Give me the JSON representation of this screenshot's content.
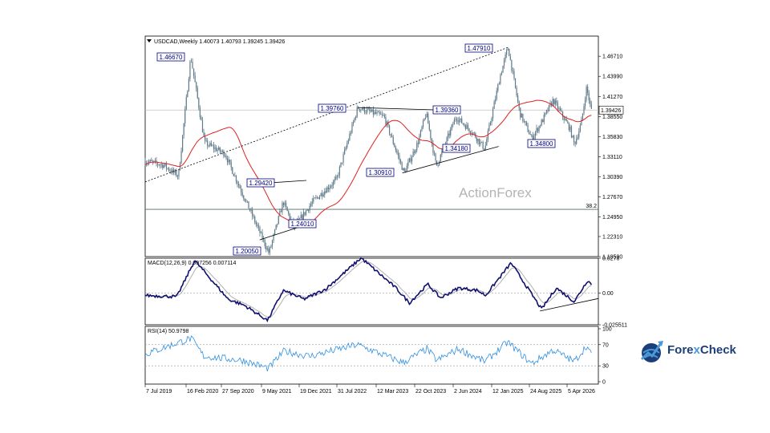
{
  "chart_data": {
    "type": "candlestick",
    "symbol_header": "USDCAD,Weekly  1.40073 1.40793 1.39245 1.39426",
    "watermark": "ActionForex",
    "x_tick_labels": [
      "7 Jul 2019",
      "16 Feb 2020",
      "27 Sep 2020",
      "9 May 2021",
      "19 Dec 2021",
      "31 Jul 2022",
      "12 Mar 2023",
      "22 Oct 2023",
      "2 Jun 2024",
      "12 Jan 2025",
      "24 Aug 2025",
      "5 Apr 2026"
    ],
    "price_panel": {
      "y_tick_labels": [
        "1.46710",
        "1.43990",
        "1.41270",
        "1.38550",
        "1.35830",
        "1.33110",
        "1.30390",
        "1.27670",
        "1.24950",
        "1.22310",
        "1.19590"
      ],
      "ylim": [
        1.1959,
        1.4944
      ],
      "current_price": "1.39426",
      "fib_level_label": "38.2",
      "fib_level_value": 1.2599,
      "annotations": [
        "1.46670",
        "1.29420",
        "1.20050",
        "1.24010",
        "1.39760",
        "1.39360",
        "1.30910",
        "1.34180",
        "1.47910",
        "1.34800"
      ],
      "anchors": [
        {
          "date": "2019-07-07",
          "close": 1.325
        },
        {
          "date": "2019-10-15",
          "close": 1.32
        },
        {
          "date": "2020-01-10",
          "close": 1.305
        },
        {
          "date": "2020-03-19",
          "close": 1.4667
        },
        {
          "date": "2020-06-05",
          "close": 1.35
        },
        {
          "date": "2020-09-27",
          "close": 1.335
        },
        {
          "date": "2021-01-15",
          "close": 1.275
        },
        {
          "date": "2021-06-01",
          "close": 1.2005
        },
        {
          "date": "2021-08-20",
          "close": 1.27
        },
        {
          "date": "2021-10-20",
          "close": 1.235
        },
        {
          "date": "2022-02-01",
          "close": 1.27
        },
        {
          "date": "2022-06-15",
          "close": 1.3
        },
        {
          "date": "2022-10-13",
          "close": 1.3976
        },
        {
          "date": "2023-03-10",
          "close": 1.385
        },
        {
          "date": "2023-06-30",
          "close": 1.3091
        },
        {
          "date": "2023-09-15",
          "close": 1.35
        },
        {
          "date": "2023-11-01",
          "close": 1.39
        },
        {
          "date": "2023-12-28",
          "close": 1.3178
        },
        {
          "date": "2024-04-16",
          "close": 1.385
        },
        {
          "date": "2024-07-15",
          "close": 1.365
        },
        {
          "date": "2024-09-25",
          "close": 1.3418
        },
        {
          "date": "2024-12-20",
          "close": 1.44
        },
        {
          "date": "2025-02-03",
          "close": 1.4791
        },
        {
          "date": "2025-04-10",
          "close": 1.39
        },
        {
          "date": "2025-06-16",
          "close": 1.356
        },
        {
          "date": "2025-08-15",
          "close": 1.38
        },
        {
          "date": "2025-10-14",
          "close": 1.408
        },
        {
          "date": "2026-01-15",
          "close": 1.37
        },
        {
          "date": "2026-02-10",
          "close": 1.348
        },
        {
          "date": "2026-03-20",
          "close": 1.375
        },
        {
          "date": "2026-04-20",
          "close": 1.425
        },
        {
          "date": "2026-05-15",
          "close": 1.3943
        }
      ]
    },
    "macd_panel": {
      "title": "MACD(12,26,9) 0.007256 0.007114",
      "y_tick_labels": [
        "0.0278",
        "0.00",
        "-0.025511"
      ],
      "ylim": [
        -0.0255,
        0.0278
      ],
      "anchors": [
        {
          "date": "2019-07-07",
          "value": -0.002
        },
        {
          "date": "2020-01-01",
          "value": -0.003
        },
        {
          "date": "2020-04-10",
          "value": 0.026
        },
        {
          "date": "2020-10-15",
          "value": -0.005
        },
        {
          "date": "2021-01-15",
          "value": -0.01
        },
        {
          "date": "2021-05-25",
          "value": -0.022
        },
        {
          "date": "2021-08-20",
          "value": 0.002
        },
        {
          "date": "2021-12-15",
          "value": -0.005
        },
        {
          "date": "2022-04-15",
          "value": 0.003
        },
        {
          "date": "2022-11-01",
          "value": 0.028
        },
        {
          "date": "2023-05-15",
          "value": 0.004
        },
        {
          "date": "2023-07-30",
          "value": -0.008
        },
        {
          "date": "2023-11-10",
          "value": 0.007
        },
        {
          "date": "2024-01-20",
          "value": -0.004
        },
        {
          "date": "2024-05-01",
          "value": 0.004
        },
        {
          "date": "2024-08-15",
          "value": 0.002
        },
        {
          "date": "2024-09-30",
          "value": -0.002
        },
        {
          "date": "2025-02-20",
          "value": 0.024
        },
        {
          "date": "2025-08-10",
          "value": -0.013
        },
        {
          "date": "2025-11-01",
          "value": 0.004
        },
        {
          "date": "2026-02-10",
          "value": -0.007
        },
        {
          "date": "2026-04-25",
          "value": 0.01
        },
        {
          "date": "2026-05-15",
          "value": 0.0073
        }
      ]
    },
    "rsi_panel": {
      "title": "RSI(14) 50.9798",
      "y_tick_labels": [
        "100",
        "70",
        "30",
        "0"
      ],
      "levels": [
        70,
        30
      ],
      "ylim": [
        0,
        100
      ],
      "anchors": [
        {
          "date": "2019-07-07",
          "value": 52
        },
        {
          "date": "2020-03-20",
          "value": 82
        },
        {
          "date": "2020-06-01",
          "value": 48
        },
        {
          "date": "2021-01-10",
          "value": 40
        },
        {
          "date": "2021-05-30",
          "value": 25
        },
        {
          "date": "2021-08-25",
          "value": 58
        },
        {
          "date": "2022-01-15",
          "value": 48
        },
        {
          "date": "2022-10-10",
          "value": 70
        },
        {
          "date": "2023-06-25",
          "value": 36
        },
        {
          "date": "2023-11-05",
          "value": 62
        },
        {
          "date": "2024-01-01",
          "value": 40
        },
        {
          "date": "2024-05-01",
          "value": 62
        },
        {
          "date": "2024-09-25",
          "value": 38
        },
        {
          "date": "2025-02-01",
          "value": 75
        },
        {
          "date": "2025-06-15",
          "value": 34
        },
        {
          "date": "2025-10-15",
          "value": 60
        },
        {
          "date": "2026-02-10",
          "value": 38
        },
        {
          "date": "2026-04-20",
          "value": 68
        },
        {
          "date": "2026-05-15",
          "value": 51
        }
      ]
    }
  },
  "brand": {
    "prefix": "Fore",
    "x": "x",
    "suffix": "Check"
  }
}
